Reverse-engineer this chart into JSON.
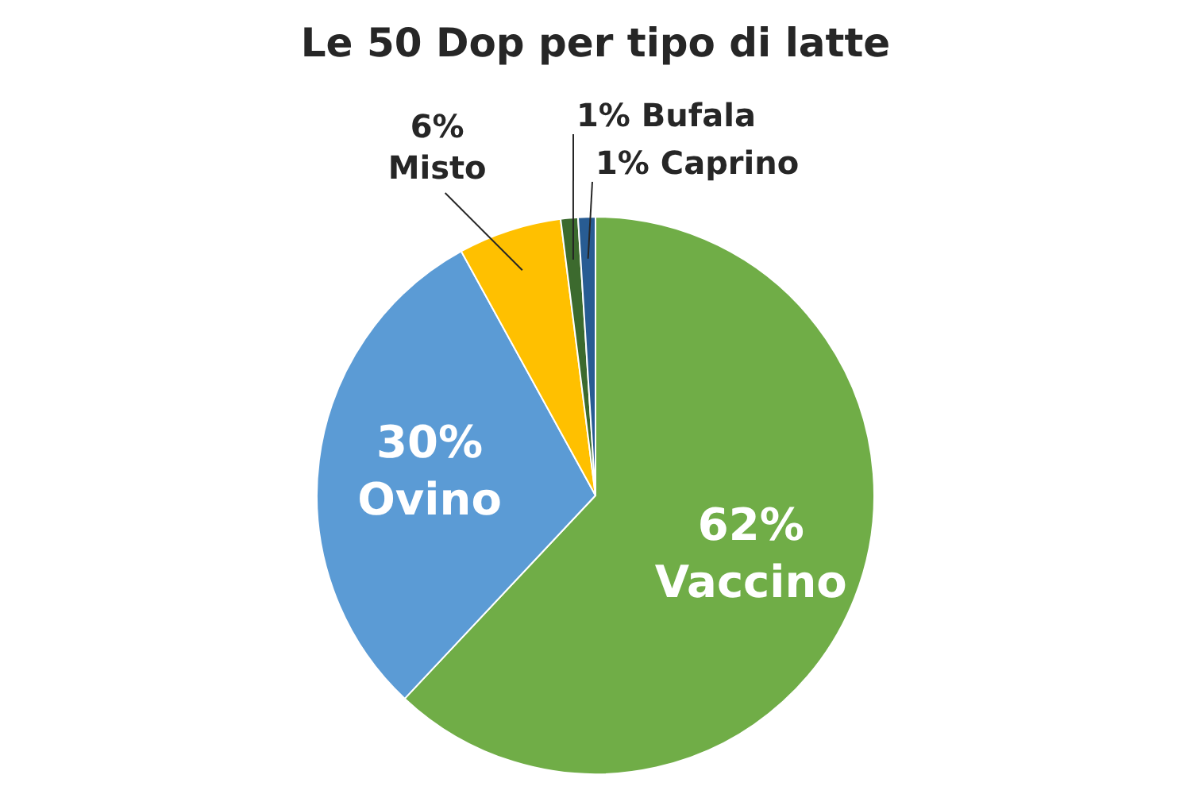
{
  "chart_data": {
    "type": "pie",
    "title": "Le 50 Dop per tipo di latte",
    "categories": [
      "Vaccino",
      "Ovino",
      "Misto",
      "Bufala",
      "Caprino"
    ],
    "values": [
      62,
      30,
      6,
      1,
      1
    ],
    "colors": [
      "#70ad47",
      "#5b9bd5",
      "#ffc000",
      "#3c6a2e",
      "#285c93"
    ],
    "value_labels": [
      "62%",
      "30%",
      "6%",
      "1%",
      "1%"
    ]
  }
}
